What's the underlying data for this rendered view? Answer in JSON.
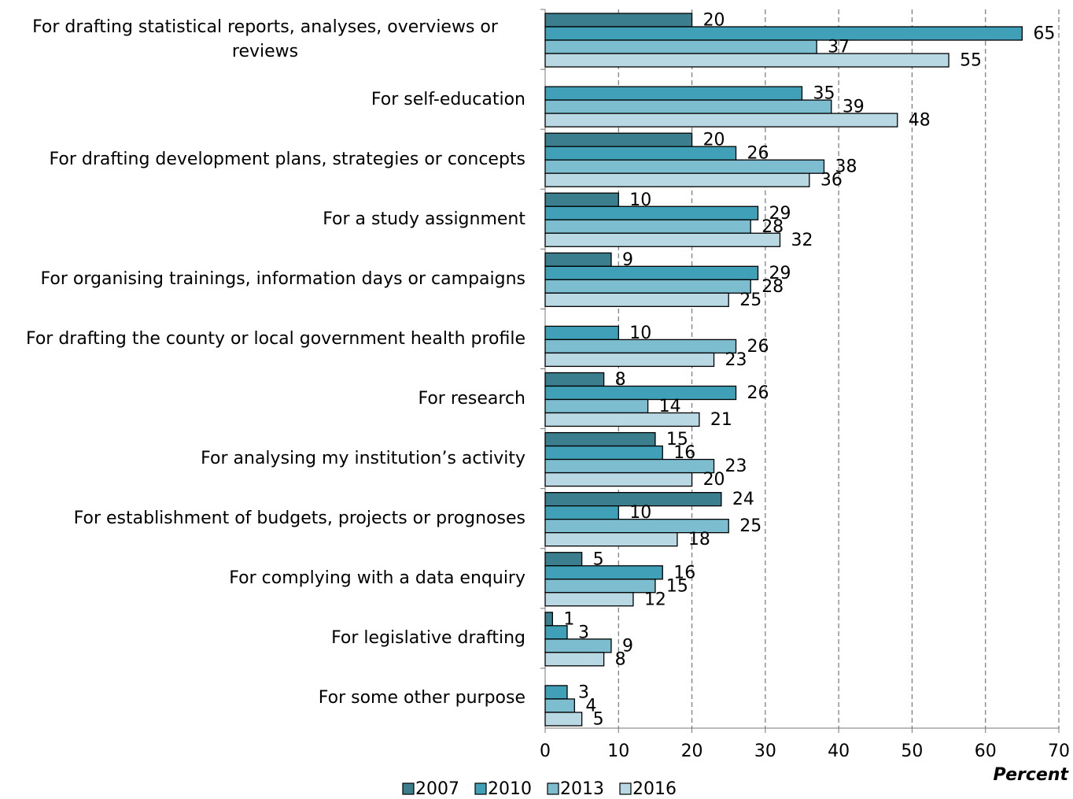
{
  "chart_data": {
    "type": "bar",
    "orientation": "horizontal",
    "categories": [
      "For drafting statistical reports, analyses, overviews or reviews",
      "For self-education",
      "For drafting development plans, strategies or concepts",
      "For a study assignment",
      "For organising trainings, information days or campaigns",
      "For drafting the county or local government health profile",
      "For research",
      "For analysing my institution’s activity",
      "For establishment of budgets, projects or prognoses",
      "For complying with a data enquiry",
      "For legislative drafting",
      "For some other purpose"
    ],
    "series": [
      {
        "name": "2007",
        "color": "#3b7f8e",
        "values": [
          20,
          null,
          20,
          10,
          9,
          null,
          8,
          15,
          24,
          5,
          1,
          null
        ]
      },
      {
        "name": "2010",
        "color": "#40a0b8",
        "values": [
          65,
          35,
          26,
          29,
          29,
          10,
          26,
          16,
          10,
          16,
          3,
          3
        ]
      },
      {
        "name": "2013",
        "color": "#7dbdd0",
        "values": [
          37,
          39,
          38,
          28,
          28,
          26,
          14,
          23,
          25,
          15,
          9,
          4
        ]
      },
      {
        "name": "2016",
        "color": "#b8d9e3",
        "values": [
          55,
          48,
          36,
          32,
          25,
          23,
          21,
          20,
          18,
          12,
          8,
          5
        ]
      }
    ],
    "xlabel": "Percent",
    "xlim": [
      0,
      70
    ],
    "xticks": [
      0,
      10,
      20,
      30,
      40,
      50,
      60,
      70
    ],
    "grid": true,
    "legend": "bottom"
  }
}
